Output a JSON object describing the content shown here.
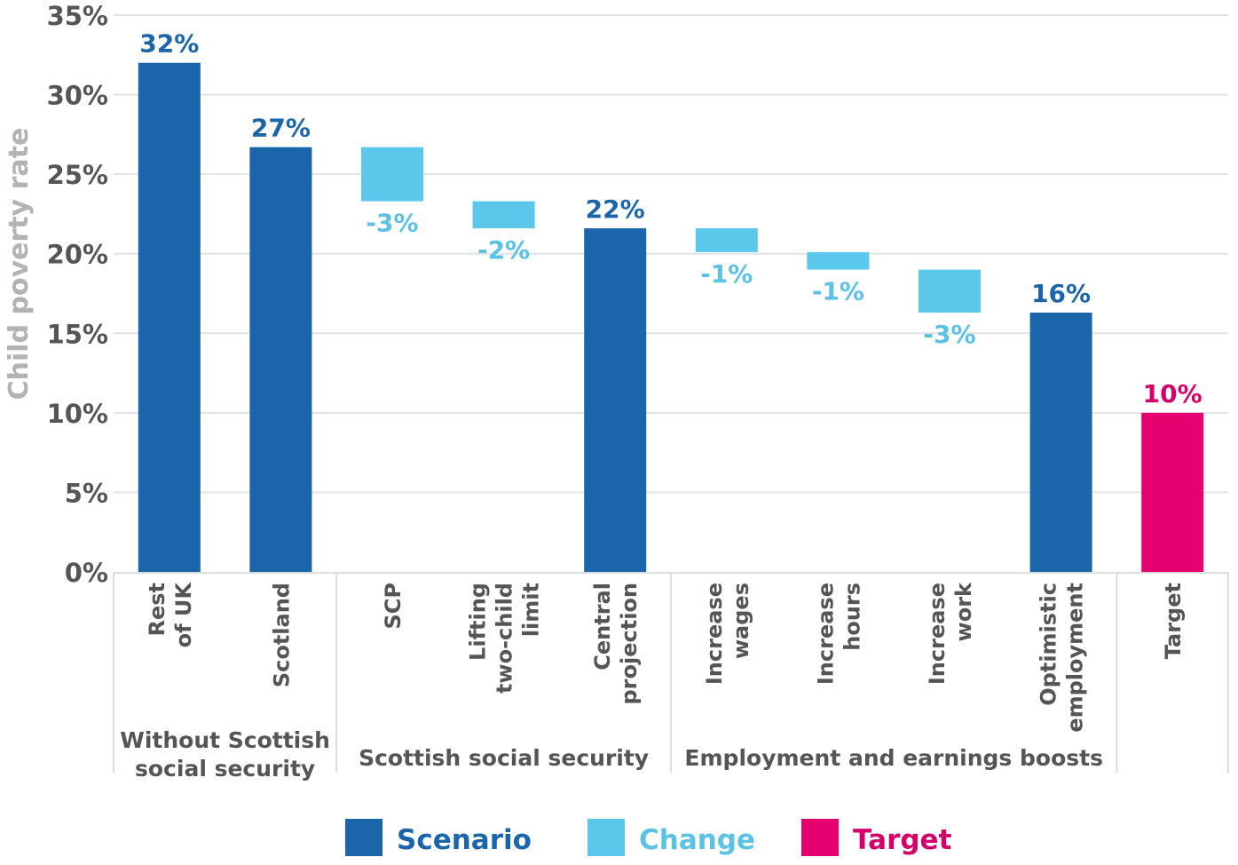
{
  "chart_data": {
    "type": "bar",
    "subtype": "waterfall",
    "title": "",
    "xlabel": "",
    "ylabel": "Child poverty rate",
    "ylim": [
      0,
      35
    ],
    "yticks": [
      0,
      5,
      10,
      15,
      20,
      25,
      30,
      35
    ],
    "ytick_labels": [
      "0%",
      "5%",
      "10%",
      "15%",
      "20%",
      "25%",
      "30%",
      "35%"
    ],
    "grid": true,
    "legend_position": "bottom",
    "colors": {
      "Scenario": "#1b65ab",
      "Change": "#5bc8eb",
      "Target": "#e6006f",
      "scenario_label": "#1b65ab",
      "change_label": "#5bc2e6",
      "target_label": "#d4006a"
    },
    "categories": [
      {
        "label_lines": [
          "Rest",
          "of UK"
        ],
        "type": "Scenario",
        "start": 0,
        "end": 32.0,
        "value_label": "32%"
      },
      {
        "label_lines": [
          "Scotland"
        ],
        "type": "Scenario",
        "start": 0,
        "end": 26.7,
        "value_label": "27%"
      },
      {
        "label_lines": [
          "SCP"
        ],
        "type": "Change",
        "start": 26.7,
        "end": 23.3,
        "value_label": "-3%"
      },
      {
        "label_lines": [
          "Lifting",
          "two-child",
          "limit"
        ],
        "type": "Change",
        "start": 23.3,
        "end": 21.6,
        "value_label": "-2%"
      },
      {
        "label_lines": [
          "Central",
          "projection"
        ],
        "type": "Scenario",
        "start": 0,
        "end": 21.6,
        "value_label": "22%"
      },
      {
        "label_lines": [
          "Increase",
          "wages"
        ],
        "type": "Change",
        "start": 21.6,
        "end": 20.1,
        "value_label": "-1%"
      },
      {
        "label_lines": [
          "Increase",
          "hours"
        ],
        "type": "Change",
        "start": 20.1,
        "end": 19.0,
        "value_label": "-1%"
      },
      {
        "label_lines": [
          "Increase",
          "work"
        ],
        "type": "Change",
        "start": 19.0,
        "end": 16.3,
        "value_label": "-3%"
      },
      {
        "label_lines": [
          "Optimistic",
          "employment"
        ],
        "type": "Scenario",
        "start": 0,
        "end": 16.3,
        "value_label": "16%"
      },
      {
        "label_lines": [
          "Target"
        ],
        "type": "Target",
        "start": 0,
        "end": 10.0,
        "value_label": "10%"
      }
    ],
    "groups": [
      {
        "label_lines": [
          "Without Scottish",
          "social security"
        ],
        "from": 0,
        "to": 1
      },
      {
        "label_lines": [
          "Scottish social security"
        ],
        "from": 2,
        "to": 4
      },
      {
        "label_lines": [
          "Employment and earnings boosts"
        ],
        "from": 5,
        "to": 8
      },
      {
        "label_lines": [],
        "from": 9,
        "to": 9
      }
    ],
    "legend": [
      {
        "name": "Scenario"
      },
      {
        "name": "Change"
      },
      {
        "name": "Target"
      }
    ]
  }
}
